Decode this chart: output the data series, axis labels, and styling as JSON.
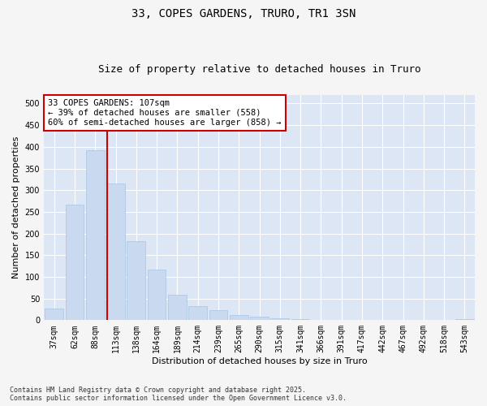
{
  "title_line1": "33, COPES GARDENS, TRURO, TR1 3SN",
  "title_line2": "Size of property relative to detached houses in Truro",
  "xlabel": "Distribution of detached houses by size in Truro",
  "ylabel": "Number of detached properties",
  "categories": [
    "37sqm",
    "62sqm",
    "88sqm",
    "113sqm",
    "138sqm",
    "164sqm",
    "189sqm",
    "214sqm",
    "239sqm",
    "265sqm",
    "290sqm",
    "315sqm",
    "341sqm",
    "366sqm",
    "391sqm",
    "417sqm",
    "442sqm",
    "467sqm",
    "492sqm",
    "518sqm",
    "543sqm"
  ],
  "values": [
    27,
    267,
    393,
    315,
    182,
    116,
    58,
    33,
    23,
    12,
    8,
    5,
    2,
    1,
    1,
    1,
    0,
    0,
    0,
    0,
    3
  ],
  "bar_color": "#c9d9f0",
  "bar_edge_color": "#a8c4e0",
  "background_color": "#dce6f5",
  "grid_color": "#ffffff",
  "vline_color": "#cc0000",
  "vline_x_index": 2.57,
  "annotation_text": "33 COPES GARDENS: 107sqm\n← 39% of detached houses are smaller (558)\n60% of semi-detached houses are larger (858) →",
  "annotation_box_edgecolor": "#cc0000",
  "annotation_box_facecolor": "#ffffff",
  "ylim": [
    0,
    520
  ],
  "yticks": [
    0,
    50,
    100,
    150,
    200,
    250,
    300,
    350,
    400,
    450,
    500
  ],
  "footer_text": "Contains HM Land Registry data © Crown copyright and database right 2025.\nContains public sector information licensed under the Open Government Licence v3.0.",
  "fig_facecolor": "#f5f5f5",
  "title_fontsize": 10,
  "subtitle_fontsize": 9,
  "axis_label_fontsize": 8,
  "tick_fontsize": 7,
  "annotation_fontsize": 7.5,
  "footer_fontsize": 6
}
